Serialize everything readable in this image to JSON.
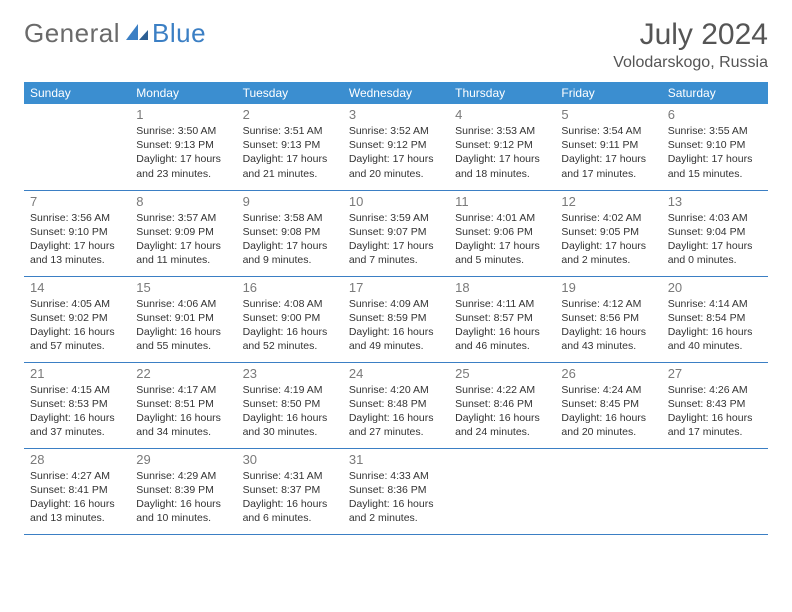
{
  "logo": {
    "text1": "General",
    "text2": "Blue"
  },
  "title": "July 2024",
  "location": "Volodarskogo, Russia",
  "colors": {
    "header_bg": "#3b8ed0",
    "header_text": "#ffffff",
    "border": "#3b7fc4",
    "daynum": "#7a7a7a",
    "body_text": "#333333",
    "logo_gray": "#6a6a6a",
    "logo_blue": "#3b7fc4"
  },
  "weekdays": [
    "Sunday",
    "Monday",
    "Tuesday",
    "Wednesday",
    "Thursday",
    "Friday",
    "Saturday"
  ],
  "weeks": [
    [
      null,
      {
        "n": "1",
        "sr": "3:50 AM",
        "ss": "9:13 PM",
        "dl": "17 hours and 23 minutes."
      },
      {
        "n": "2",
        "sr": "3:51 AM",
        "ss": "9:13 PM",
        "dl": "17 hours and 21 minutes."
      },
      {
        "n": "3",
        "sr": "3:52 AM",
        "ss": "9:12 PM",
        "dl": "17 hours and 20 minutes."
      },
      {
        "n": "4",
        "sr": "3:53 AM",
        "ss": "9:12 PM",
        "dl": "17 hours and 18 minutes."
      },
      {
        "n": "5",
        "sr": "3:54 AM",
        "ss": "9:11 PM",
        "dl": "17 hours and 17 minutes."
      },
      {
        "n": "6",
        "sr": "3:55 AM",
        "ss": "9:10 PM",
        "dl": "17 hours and 15 minutes."
      }
    ],
    [
      {
        "n": "7",
        "sr": "3:56 AM",
        "ss": "9:10 PM",
        "dl": "17 hours and 13 minutes."
      },
      {
        "n": "8",
        "sr": "3:57 AM",
        "ss": "9:09 PM",
        "dl": "17 hours and 11 minutes."
      },
      {
        "n": "9",
        "sr": "3:58 AM",
        "ss": "9:08 PM",
        "dl": "17 hours and 9 minutes."
      },
      {
        "n": "10",
        "sr": "3:59 AM",
        "ss": "9:07 PM",
        "dl": "17 hours and 7 minutes."
      },
      {
        "n": "11",
        "sr": "4:01 AM",
        "ss": "9:06 PM",
        "dl": "17 hours and 5 minutes."
      },
      {
        "n": "12",
        "sr": "4:02 AM",
        "ss": "9:05 PM",
        "dl": "17 hours and 2 minutes."
      },
      {
        "n": "13",
        "sr": "4:03 AM",
        "ss": "9:04 PM",
        "dl": "17 hours and 0 minutes."
      }
    ],
    [
      {
        "n": "14",
        "sr": "4:05 AM",
        "ss": "9:02 PM",
        "dl": "16 hours and 57 minutes."
      },
      {
        "n": "15",
        "sr": "4:06 AM",
        "ss": "9:01 PM",
        "dl": "16 hours and 55 minutes."
      },
      {
        "n": "16",
        "sr": "4:08 AM",
        "ss": "9:00 PM",
        "dl": "16 hours and 52 minutes."
      },
      {
        "n": "17",
        "sr": "4:09 AM",
        "ss": "8:59 PM",
        "dl": "16 hours and 49 minutes."
      },
      {
        "n": "18",
        "sr": "4:11 AM",
        "ss": "8:57 PM",
        "dl": "16 hours and 46 minutes."
      },
      {
        "n": "19",
        "sr": "4:12 AM",
        "ss": "8:56 PM",
        "dl": "16 hours and 43 minutes."
      },
      {
        "n": "20",
        "sr": "4:14 AM",
        "ss": "8:54 PM",
        "dl": "16 hours and 40 minutes."
      }
    ],
    [
      {
        "n": "21",
        "sr": "4:15 AM",
        "ss": "8:53 PM",
        "dl": "16 hours and 37 minutes."
      },
      {
        "n": "22",
        "sr": "4:17 AM",
        "ss": "8:51 PM",
        "dl": "16 hours and 34 minutes."
      },
      {
        "n": "23",
        "sr": "4:19 AM",
        "ss": "8:50 PM",
        "dl": "16 hours and 30 minutes."
      },
      {
        "n": "24",
        "sr": "4:20 AM",
        "ss": "8:48 PM",
        "dl": "16 hours and 27 minutes."
      },
      {
        "n": "25",
        "sr": "4:22 AM",
        "ss": "8:46 PM",
        "dl": "16 hours and 24 minutes."
      },
      {
        "n": "26",
        "sr": "4:24 AM",
        "ss": "8:45 PM",
        "dl": "16 hours and 20 minutes."
      },
      {
        "n": "27",
        "sr": "4:26 AM",
        "ss": "8:43 PM",
        "dl": "16 hours and 17 minutes."
      }
    ],
    [
      {
        "n": "28",
        "sr": "4:27 AM",
        "ss": "8:41 PM",
        "dl": "16 hours and 13 minutes."
      },
      {
        "n": "29",
        "sr": "4:29 AM",
        "ss": "8:39 PM",
        "dl": "16 hours and 10 minutes."
      },
      {
        "n": "30",
        "sr": "4:31 AM",
        "ss": "8:37 PM",
        "dl": "16 hours and 6 minutes."
      },
      {
        "n": "31",
        "sr": "4:33 AM",
        "ss": "8:36 PM",
        "dl": "16 hours and 2 minutes."
      },
      null,
      null,
      null
    ]
  ],
  "labels": {
    "sunrise": "Sunrise: ",
    "sunset": "Sunset: ",
    "daylight": "Daylight: "
  }
}
